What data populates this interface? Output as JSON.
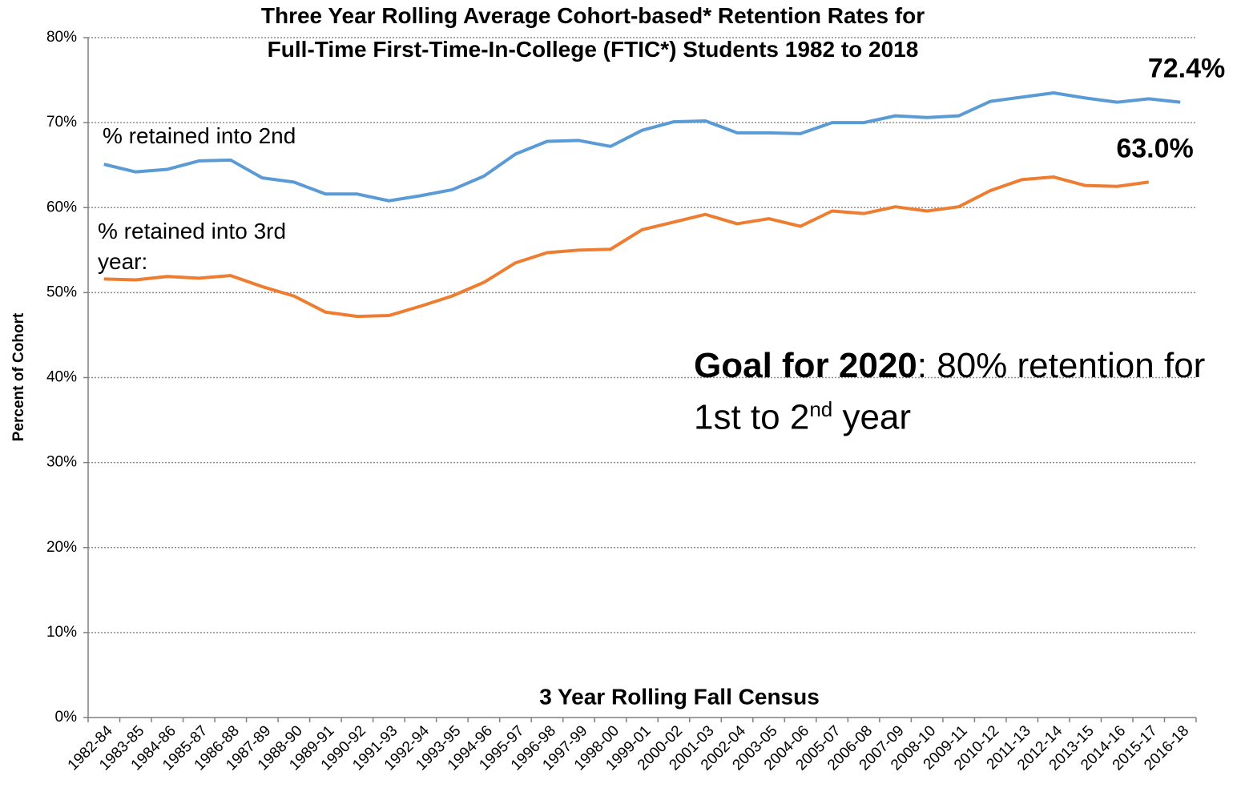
{
  "chart_data": {
    "type": "line",
    "title": [
      "Three Year Rolling Average Cohort-based* Retention Rates for",
      "Full-Time First-Time-In-College (FTIC*) Students 1982 to 2018"
    ],
    "xlabel": "3 Year Rolling Fall Census",
    "ylabel": "Percent of Cohort",
    "categories": [
      "1982-84",
      "1983-85",
      "1984-86",
      "1985-87",
      "1986-88",
      "1987-89",
      "1988-90",
      "1989-91",
      "1990-92",
      "1991-93",
      "1992-94",
      "1993-95",
      "1994-96",
      "1995-97",
      "1996-98",
      "1997-99",
      "1998-00",
      "1999-01",
      "2000-02",
      "2001-03",
      "2002-04",
      "2003-05",
      "2004-06",
      "2005-07",
      "2006-08",
      "2007-09",
      "2008-10",
      "2009-11",
      "2010-12",
      "2011-13",
      "2012-14",
      "2013-15",
      "2014-16",
      "2015-17",
      "2016-18"
    ],
    "series": [
      {
        "name": "% retained into 2nd",
        "color": "#5b9bd5",
        "values": [
          65.1,
          64.2,
          64.5,
          65.5,
          65.6,
          63.5,
          63.0,
          61.6,
          61.6,
          60.8,
          61.4,
          62.1,
          63.7,
          66.3,
          67.8,
          67.9,
          67.2,
          69.1,
          70.1,
          70.2,
          68.8,
          68.8,
          68.7,
          70.0,
          70.0,
          70.8,
          70.6,
          70.8,
          72.5,
          73.0,
          73.5,
          72.9,
          72.4,
          72.8,
          72.4
        ],
        "value_labels": [
          null,
          null,
          null,
          null,
          null,
          null,
          null,
          null,
          null,
          null,
          null,
          null,
          null,
          null,
          null,
          null,
          null,
          null,
          null,
          null,
          null,
          null,
          null,
          null,
          null,
          null,
          null,
          null,
          null,
          null,
          null,
          null,
          null,
          null,
          "72.4%"
        ]
      },
      {
        "name": "% retained into 3rd year:",
        "color": "#ed7d31",
        "values": [
          51.6,
          51.5,
          51.9,
          51.7,
          52.0,
          50.7,
          49.6,
          47.7,
          47.2,
          47.3,
          48.4,
          49.6,
          51.2,
          53.5,
          54.7,
          55.0,
          55.1,
          57.4,
          58.3,
          59.2,
          58.1,
          58.7,
          57.8,
          59.6,
          59.3,
          60.1,
          59.6,
          60.1,
          62.0,
          63.3,
          63.6,
          62.6,
          62.5,
          63.0,
          null
        ],
        "value_labels": [
          null,
          null,
          null,
          null,
          null,
          null,
          null,
          null,
          null,
          null,
          null,
          null,
          null,
          null,
          null,
          null,
          null,
          null,
          null,
          null,
          null,
          null,
          null,
          null,
          null,
          null,
          null,
          null,
          null,
          null,
          null,
          null,
          null,
          "63.0%",
          null
        ]
      }
    ],
    "annotation": {
      "bold": "Goal for 2020",
      "text": ": 80% retention for 1st to 2",
      "sup": "nd",
      "tail": " year"
    },
    "ylim": [
      0,
      80
    ],
    "yticks": [
      {
        "value": 0,
        "label": "0%"
      },
      {
        "value": 10,
        "label": "10%"
      },
      {
        "value": 20,
        "label": "20%"
      },
      {
        "value": 30,
        "label": "30%"
      },
      {
        "value": 40,
        "label": "40%"
      },
      {
        "value": 50,
        "label": "50%"
      },
      {
        "value": 60,
        "label": "60%"
      },
      {
        "value": 70,
        "label": "70%"
      },
      {
        "value": 80,
        "label": "80%"
      }
    ],
    "grid": true
  }
}
